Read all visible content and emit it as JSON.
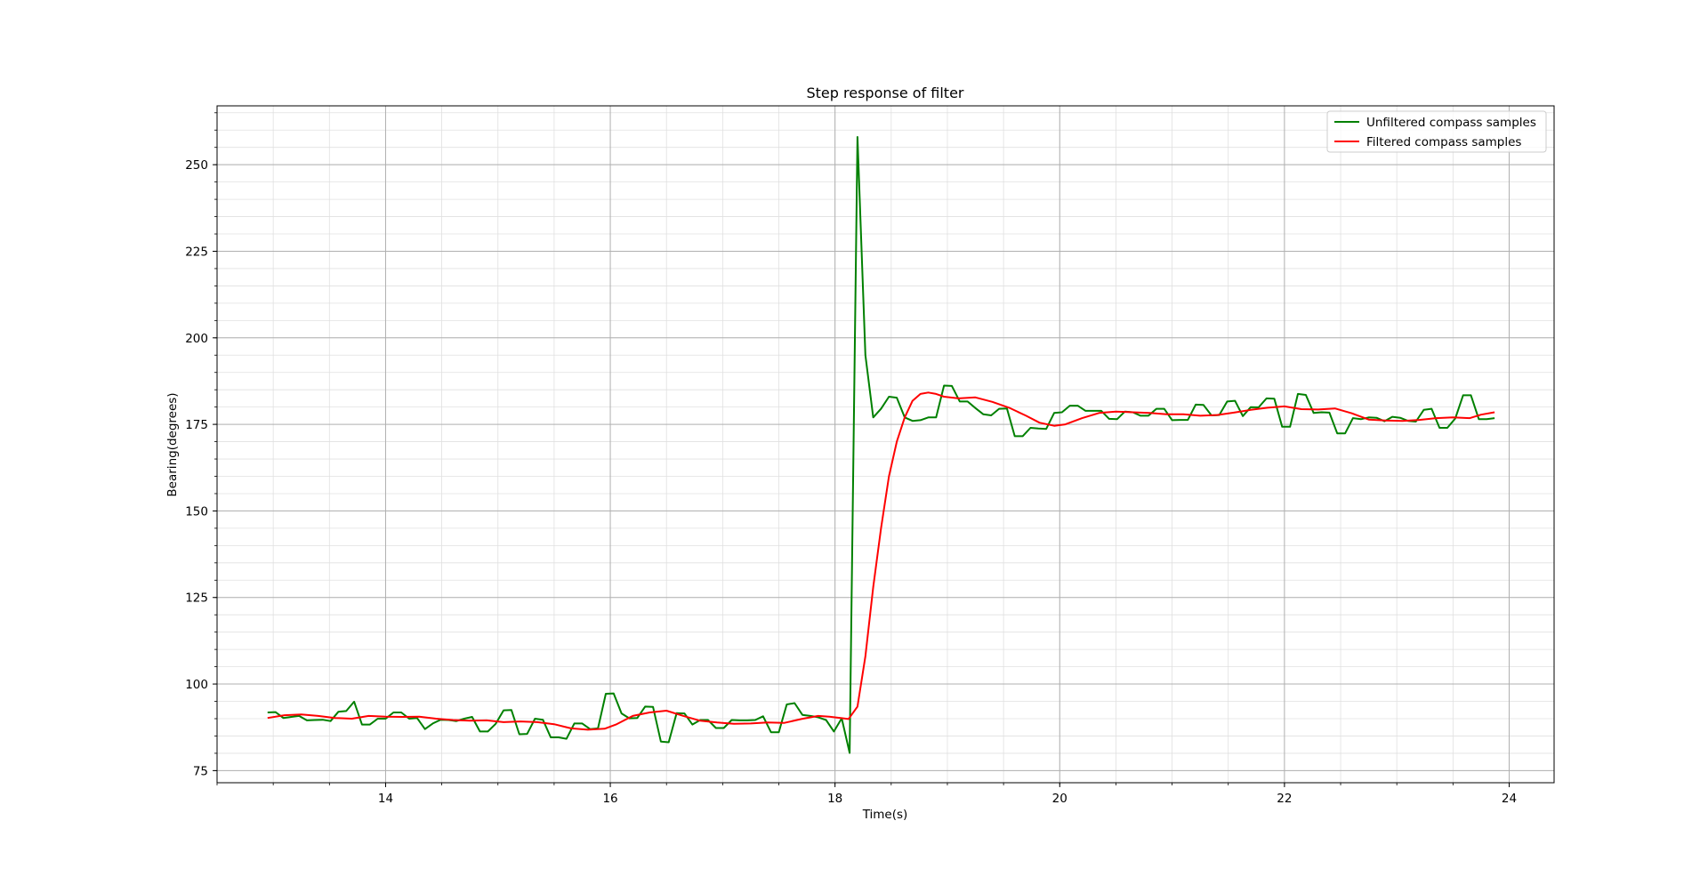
{
  "chart_data": {
    "type": "line",
    "title": "Step response of filter",
    "xlabel": "Time(s)",
    "ylabel": "Bearing(degrees)",
    "xlim": [
      12.5,
      24.4
    ],
    "ylim": [
      71.5,
      267
    ],
    "x_ticks": [
      14,
      16,
      18,
      20,
      22,
      24
    ],
    "y_ticks": [
      75,
      100,
      125,
      150,
      175,
      200,
      225,
      250
    ],
    "x_minor_step": 0.5,
    "y_minor_step": 5,
    "grid": true,
    "legend_position": "top-right",
    "series": [
      {
        "name": "Unfiltered compass samples",
        "color": "#008000",
        "points": [
          [
            12.95,
            91.8
          ],
          [
            13.02,
            91.9
          ],
          [
            13.09,
            90.2
          ],
          [
            13.16,
            90.5
          ],
          [
            13.23,
            90.8
          ],
          [
            13.3,
            89.5
          ],
          [
            13.37,
            89.6
          ],
          [
            13.44,
            89.7
          ],
          [
            13.51,
            89.3
          ],
          [
            13.58,
            92.0
          ],
          [
            13.65,
            92.2
          ],
          [
            13.72,
            94.9
          ],
          [
            13.79,
            88.3
          ],
          [
            13.86,
            88.3
          ],
          [
            13.93,
            90.0
          ],
          [
            14.0,
            90.0
          ],
          [
            14.07,
            91.8
          ],
          [
            14.14,
            91.8
          ],
          [
            14.21,
            90.0
          ],
          [
            14.28,
            90.2
          ],
          [
            14.35,
            87.0
          ],
          [
            14.42,
            88.6
          ],
          [
            14.49,
            89.7
          ],
          [
            14.56,
            89.6
          ],
          [
            14.63,
            89.3
          ],
          [
            14.7,
            90.0
          ],
          [
            14.77,
            90.5
          ],
          [
            14.84,
            86.3
          ],
          [
            14.91,
            86.3
          ],
          [
            14.98,
            88.5
          ],
          [
            15.05,
            92.4
          ],
          [
            15.12,
            92.5
          ],
          [
            15.19,
            85.5
          ],
          [
            15.26,
            85.6
          ],
          [
            15.33,
            90.0
          ],
          [
            15.4,
            89.7
          ],
          [
            15.47,
            84.6
          ],
          [
            15.54,
            84.6
          ],
          [
            15.61,
            84.2
          ],
          [
            15.68,
            88.6
          ],
          [
            15.75,
            88.6
          ],
          [
            15.82,
            87.0
          ],
          [
            15.89,
            87.2
          ],
          [
            15.96,
            97.2
          ],
          [
            16.03,
            97.3
          ],
          [
            16.1,
            91.5
          ],
          [
            16.17,
            90.1
          ],
          [
            16.24,
            90.2
          ],
          [
            16.31,
            93.5
          ],
          [
            16.38,
            93.4
          ],
          [
            16.45,
            83.4
          ],
          [
            16.52,
            83.2
          ],
          [
            16.59,
            91.6
          ],
          [
            16.66,
            91.5
          ],
          [
            16.73,
            88.3
          ],
          [
            16.8,
            89.6
          ],
          [
            16.87,
            89.6
          ],
          [
            16.94,
            87.3
          ],
          [
            17.01,
            87.3
          ],
          [
            17.08,
            89.6
          ],
          [
            17.15,
            89.5
          ],
          [
            17.22,
            89.5
          ],
          [
            17.29,
            89.6
          ],
          [
            17.36,
            90.7
          ],
          [
            17.43,
            86.1
          ],
          [
            17.5,
            86.1
          ],
          [
            17.57,
            94.1
          ],
          [
            17.64,
            94.5
          ],
          [
            17.71,
            91.1
          ],
          [
            17.78,
            90.8
          ],
          [
            17.85,
            90.4
          ],
          [
            17.92,
            89.6
          ],
          [
            17.99,
            86.3
          ],
          [
            18.06,
            90.1
          ],
          [
            18.13,
            80.1
          ],
          [
            18.2,
            258.0
          ],
          [
            18.27,
            195.0
          ],
          [
            18.34,
            177.0
          ],
          [
            18.41,
            179.5
          ],
          [
            18.48,
            183.0
          ],
          [
            18.55,
            182.7
          ],
          [
            18.62,
            177.0
          ],
          [
            18.69,
            176.0
          ],
          [
            18.76,
            176.2
          ],
          [
            18.83,
            177.0
          ],
          [
            18.9,
            177.0
          ],
          [
            18.97,
            186.2
          ],
          [
            19.04,
            186.1
          ],
          [
            19.11,
            181.6
          ],
          [
            19.18,
            181.6
          ],
          [
            19.25,
            179.7
          ],
          [
            19.32,
            177.9
          ],
          [
            19.39,
            177.6
          ],
          [
            19.46,
            179.5
          ],
          [
            19.53,
            179.6
          ],
          [
            19.6,
            171.6
          ],
          [
            19.67,
            171.6
          ],
          [
            19.74,
            174.0
          ],
          [
            19.81,
            173.8
          ],
          [
            19.88,
            173.7
          ],
          [
            19.95,
            178.3
          ],
          [
            20.02,
            178.5
          ],
          [
            20.09,
            180.4
          ],
          [
            20.16,
            180.4
          ],
          [
            20.23,
            178.9
          ],
          [
            20.3,
            178.9
          ],
          [
            20.37,
            178.9
          ],
          [
            20.44,
            176.6
          ],
          [
            20.51,
            176.5
          ],
          [
            20.58,
            178.7
          ],
          [
            20.65,
            178.5
          ],
          [
            20.72,
            177.5
          ],
          [
            20.79,
            177.5
          ],
          [
            20.86,
            179.5
          ],
          [
            20.93,
            179.5
          ],
          [
            21.0,
            176.2
          ],
          [
            21.07,
            176.3
          ],
          [
            21.14,
            176.3
          ],
          [
            21.21,
            180.7
          ],
          [
            21.28,
            180.6
          ],
          [
            21.35,
            177.6
          ],
          [
            21.42,
            177.7
          ],
          [
            21.49,
            181.6
          ],
          [
            21.56,
            181.8
          ],
          [
            21.63,
            177.4
          ],
          [
            21.7,
            180.0
          ],
          [
            21.77,
            179.9
          ],
          [
            21.84,
            182.5
          ],
          [
            21.91,
            182.4
          ],
          [
            21.98,
            174.3
          ],
          [
            22.05,
            174.3
          ],
          [
            22.12,
            183.8
          ],
          [
            22.19,
            183.5
          ],
          [
            22.26,
            178.3
          ],
          [
            22.33,
            178.5
          ],
          [
            22.4,
            178.4
          ],
          [
            22.47,
            172.4
          ],
          [
            22.54,
            172.4
          ],
          [
            22.61,
            176.8
          ],
          [
            22.68,
            176.5
          ],
          [
            22.75,
            177.0
          ],
          [
            22.82,
            176.9
          ],
          [
            22.89,
            175.9
          ],
          [
            22.96,
            177.2
          ],
          [
            23.03,
            176.9
          ],
          [
            23.1,
            176.0
          ],
          [
            23.17,
            175.8
          ],
          [
            23.24,
            179.2
          ],
          [
            23.31,
            179.5
          ],
          [
            23.38,
            174.0
          ],
          [
            23.45,
            174.0
          ],
          [
            23.52,
            176.7
          ],
          [
            23.59,
            183.4
          ],
          [
            23.66,
            183.4
          ],
          [
            23.73,
            176.5
          ],
          [
            23.8,
            176.5
          ],
          [
            23.87,
            176.8
          ]
        ]
      },
      {
        "name": "Filtered compass samples",
        "color": "#ff0000",
        "points": [
          [
            12.95,
            90.2
          ],
          [
            13.1,
            91.0
          ],
          [
            13.25,
            91.2
          ],
          [
            13.4,
            90.8
          ],
          [
            13.55,
            90.2
          ],
          [
            13.7,
            90.0
          ],
          [
            13.85,
            90.8
          ],
          [
            14.0,
            90.6
          ],
          [
            14.15,
            90.5
          ],
          [
            14.3,
            90.6
          ],
          [
            14.45,
            90.0
          ],
          [
            14.6,
            89.6
          ],
          [
            14.75,
            89.4
          ],
          [
            14.9,
            89.5
          ],
          [
            15.05,
            89.0
          ],
          [
            15.2,
            89.2
          ],
          [
            15.35,
            89.0
          ],
          [
            15.5,
            88.4
          ],
          [
            15.65,
            87.2
          ],
          [
            15.8,
            86.8
          ],
          [
            15.95,
            87.1
          ],
          [
            16.05,
            88.3
          ],
          [
            16.2,
            90.8
          ],
          [
            16.35,
            91.8
          ],
          [
            16.5,
            92.3
          ],
          [
            16.65,
            90.8
          ],
          [
            16.8,
            89.4
          ],
          [
            16.95,
            88.9
          ],
          [
            17.1,
            88.5
          ],
          [
            17.25,
            88.6
          ],
          [
            17.4,
            88.9
          ],
          [
            17.55,
            88.8
          ],
          [
            17.7,
            89.9
          ],
          [
            17.85,
            90.8
          ],
          [
            17.95,
            90.6
          ],
          [
            18.05,
            90.2
          ],
          [
            18.12,
            89.9
          ],
          [
            18.2,
            93.5
          ],
          [
            18.27,
            108.0
          ],
          [
            18.34,
            128.0
          ],
          [
            18.41,
            145.0
          ],
          [
            18.48,
            160.0
          ],
          [
            18.55,
            170.0
          ],
          [
            18.62,
            177.0
          ],
          [
            18.69,
            181.8
          ],
          [
            18.76,
            183.8
          ],
          [
            18.83,
            184.2
          ],
          [
            18.9,
            183.8
          ],
          [
            18.97,
            183.0
          ],
          [
            19.1,
            182.5
          ],
          [
            19.25,
            182.8
          ],
          [
            19.4,
            181.5
          ],
          [
            19.55,
            179.8
          ],
          [
            19.7,
            177.5
          ],
          [
            19.82,
            175.5
          ],
          [
            19.95,
            174.6
          ],
          [
            20.05,
            175.0
          ],
          [
            20.2,
            176.8
          ],
          [
            20.35,
            178.3
          ],
          [
            20.5,
            178.7
          ],
          [
            20.65,
            178.5
          ],
          [
            20.8,
            178.3
          ],
          [
            20.95,
            177.9
          ],
          [
            21.1,
            177.9
          ],
          [
            21.25,
            177.5
          ],
          [
            21.4,
            177.7
          ],
          [
            21.55,
            178.4
          ],
          [
            21.7,
            179.2
          ],
          [
            21.85,
            179.8
          ],
          [
            22.0,
            180.2
          ],
          [
            22.15,
            179.4
          ],
          [
            22.3,
            179.3
          ],
          [
            22.45,
            179.6
          ],
          [
            22.6,
            178.2
          ],
          [
            22.75,
            176.4
          ],
          [
            22.9,
            176.1
          ],
          [
            23.05,
            176.0
          ],
          [
            23.2,
            176.3
          ],
          [
            23.35,
            176.8
          ],
          [
            23.5,
            177.0
          ],
          [
            23.65,
            176.8
          ],
          [
            23.75,
            177.8
          ],
          [
            23.87,
            178.5
          ]
        ]
      }
    ]
  }
}
